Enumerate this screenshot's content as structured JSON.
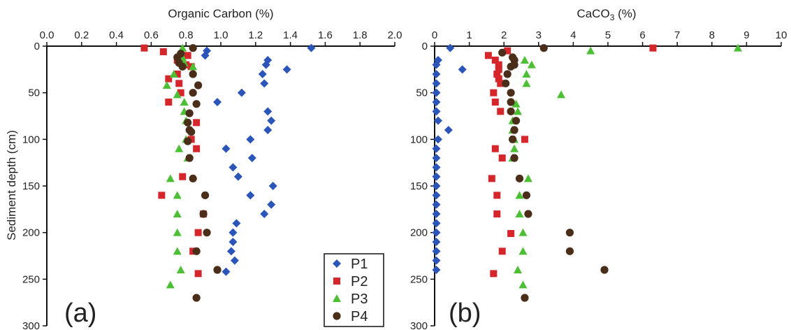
{
  "colors": {
    "P1": "#2b55b8",
    "P2": "#d4262b",
    "P3": "#4cbf34",
    "P4": "#4a2e1a",
    "axis": "#111111"
  },
  "legend": {
    "items": [
      "P1",
      "P2",
      "P3",
      "P4"
    ],
    "placement": "bottom-center"
  },
  "shared_ylabel": "Sediment depth (cm)",
  "chart_data": [
    {
      "type": "scatter",
      "panel_label": "(a)",
      "title": "Organic Carbon (%)",
      "xlim": [
        0.0,
        2.0
      ],
      "ylim": [
        0,
        300
      ],
      "y_inverted": true,
      "x_axis_position": "top",
      "xticks": [
        "0.0",
        "0.2",
        "0.4",
        "0.6",
        "0.8",
        "1.0",
        "1.2",
        "1.4",
        "1.6",
        "1.8",
        "2.0"
      ],
      "yticks": [
        "0",
        "50",
        "100",
        "150",
        "200",
        "250",
        "300"
      ],
      "series": [
        {
          "name": "P1",
          "marker": "diamond",
          "points": [
            [
              1.52,
              2
            ],
            [
              0.92,
              5
            ],
            [
              0.91,
              10
            ],
            [
              1.27,
              15
            ],
            [
              1.26,
              20
            ],
            [
              1.38,
              25
            ],
            [
              1.24,
              30
            ],
            [
              1.25,
              40
            ],
            [
              1.12,
              50
            ],
            [
              0.98,
              60
            ],
            [
              1.27,
              70
            ],
            [
              1.29,
              80
            ],
            [
              1.27,
              90
            ],
            [
              1.17,
              100
            ],
            [
              1.03,
              110
            ],
            [
              1.18,
              120
            ],
            [
              1.07,
              130
            ],
            [
              1.1,
              140
            ],
            [
              1.3,
              150
            ],
            [
              1.17,
              160
            ],
            [
              1.29,
              170
            ],
            [
              1.25,
              180
            ],
            [
              1.09,
              190
            ],
            [
              1.07,
              200
            ],
            [
              1.07,
              210
            ],
            [
              1.06,
              220
            ],
            [
              1.08,
              230
            ],
            [
              1.03,
              242
            ]
          ]
        },
        {
          "name": "P2",
          "marker": "square",
          "points": [
            [
              0.56,
              2
            ],
            [
              0.67,
              6
            ],
            [
              0.81,
              10
            ],
            [
              0.75,
              15
            ],
            [
              0.8,
              20
            ],
            [
              0.83,
              22
            ],
            [
              0.75,
              30
            ],
            [
              0.7,
              35
            ],
            [
              0.76,
              40
            ],
            [
              0.77,
              50
            ],
            [
              0.7,
              60
            ],
            [
              0.86,
              82
            ],
            [
              0.83,
              100
            ],
            [
              0.86,
              110
            ],
            [
              0.78,
              140
            ],
            [
              0.66,
              160
            ],
            [
              0.9,
              180
            ],
            [
              0.87,
              200
            ],
            [
              0.84,
              220
            ],
            [
              0.87,
              244
            ]
          ]
        },
        {
          "name": "P3",
          "marker": "triangle",
          "points": [
            [
              0.78,
              2
            ],
            [
              0.77,
              6
            ],
            [
              0.78,
              12
            ],
            [
              0.79,
              18
            ],
            [
              0.84,
              22
            ],
            [
              0.73,
              30
            ],
            [
              0.69,
              42
            ],
            [
              0.75,
              52
            ],
            [
              0.79,
              60
            ],
            [
              0.79,
              70
            ],
            [
              0.8,
              80
            ],
            [
              0.8,
              100
            ],
            [
              0.76,
              110
            ],
            [
              0.81,
              120
            ],
            [
              0.71,
              142
            ],
            [
              0.75,
              160
            ],
            [
              0.75,
              180
            ],
            [
              0.75,
              200
            ],
            [
              0.75,
              220
            ],
            [
              0.77,
              240
            ],
            [
              0.71,
              256
            ]
          ]
        },
        {
          "name": "P4",
          "marker": "circle",
          "points": [
            [
              0.84,
              2
            ],
            [
              0.77,
              8
            ],
            [
              0.75,
              12
            ],
            [
              0.76,
              18
            ],
            [
              0.78,
              22
            ],
            [
              0.84,
              30
            ],
            [
              0.87,
              42
            ],
            [
              0.84,
              50
            ],
            [
              0.86,
              62
            ],
            [
              0.82,
              72
            ],
            [
              0.81,
              82
            ],
            [
              0.82,
              90
            ],
            [
              0.83,
              92
            ],
            [
              0.81,
              102
            ],
            [
              0.82,
              120
            ],
            [
              0.84,
              142
            ],
            [
              0.91,
              160
            ],
            [
              0.9,
              180
            ],
            [
              0.92,
              200
            ],
            [
              0.86,
              220
            ],
            [
              0.98,
              240
            ],
            [
              0.86,
              270
            ]
          ]
        }
      ]
    },
    {
      "type": "scatter",
      "panel_label": "(b)",
      "title_main": "CaCO",
      "title_sub": "3",
      "title_tail": " (%)",
      "xlim": [
        0,
        10
      ],
      "ylim": [
        0,
        300
      ],
      "y_inverted": true,
      "x_axis_position": "top",
      "xticks": [
        "0",
        "1",
        "2",
        "3",
        "4",
        "5",
        "6",
        "7",
        "8",
        "9",
        "10"
      ],
      "yticks": [
        "0",
        "50",
        "100",
        "150",
        "200",
        "250",
        "300"
      ],
      "series": [
        {
          "name": "P1",
          "marker": "diamond",
          "points": [
            [
              0.45,
              2
            ],
            [
              0.1,
              15
            ],
            [
              0.05,
              20
            ],
            [
              0.8,
              25
            ],
            [
              0.05,
              30
            ],
            [
              0.05,
              40
            ],
            [
              0.05,
              50
            ],
            [
              0.05,
              60
            ],
            [
              0.05,
              70
            ],
            [
              0.1,
              80
            ],
            [
              0.4,
              90
            ],
            [
              0.1,
              100
            ],
            [
              0.05,
              110
            ],
            [
              0.05,
              120
            ],
            [
              0.05,
              130
            ],
            [
              0.05,
              140
            ],
            [
              0.05,
              150
            ],
            [
              0.05,
              160
            ],
            [
              0.05,
              170
            ],
            [
              0.05,
              180
            ],
            [
              0.05,
              190
            ],
            [
              0.05,
              200
            ],
            [
              0.05,
              210
            ],
            [
              0.05,
              220
            ],
            [
              0.05,
              230
            ],
            [
              0.05,
              240
            ]
          ]
        },
        {
          "name": "P2",
          "marker": "square",
          "points": [
            [
              6.3,
              2
            ],
            [
              2.1,
              5
            ],
            [
              1.55,
              10
            ],
            [
              1.75,
              15
            ],
            [
              1.85,
              20
            ],
            [
              1.85,
              25
            ],
            [
              1.8,
              30
            ],
            [
              1.85,
              35
            ],
            [
              1.9,
              40
            ],
            [
              1.7,
              50
            ],
            [
              1.75,
              60
            ],
            [
              1.9,
              70
            ],
            [
              2.6,
              100
            ],
            [
              1.75,
              110
            ],
            [
              1.95,
              120
            ],
            [
              1.65,
              142
            ],
            [
              1.8,
              160
            ],
            [
              1.8,
              180
            ],
            [
              2.2,
              201
            ],
            [
              1.95,
              220
            ],
            [
              1.7,
              244
            ]
          ]
        },
        {
          "name": "P3",
          "marker": "triangle",
          "points": [
            [
              8.75,
              2
            ],
            [
              4.5,
              5
            ],
            [
              2.6,
              15
            ],
            [
              2.8,
              20
            ],
            [
              2.65,
              30
            ],
            [
              2.65,
              40
            ],
            [
              3.65,
              52
            ],
            [
              2.35,
              62
            ],
            [
              2.4,
              70
            ],
            [
              2.25,
              80
            ],
            [
              2.25,
              90
            ],
            [
              2.3,
              100
            ],
            [
              2.3,
              110
            ],
            [
              2.25,
              120
            ],
            [
              2.7,
              142
            ],
            [
              2.45,
              160
            ],
            [
              2.45,
              180
            ],
            [
              2.55,
              200
            ],
            [
              2.55,
              220
            ],
            [
              2.4,
              240
            ],
            [
              2.55,
              256
            ]
          ]
        },
        {
          "name": "P4",
          "marker": "circle",
          "points": [
            [
              3.15,
              2
            ],
            [
              1.95,
              7
            ],
            [
              2.25,
              12
            ],
            [
              2.3,
              15
            ],
            [
              2.3,
              20
            ],
            [
              2.2,
              22
            ],
            [
              2.1,
              30
            ],
            [
              2.05,
              40
            ],
            [
              2.2,
              50
            ],
            [
              2.2,
              60
            ],
            [
              2.2,
              70
            ],
            [
              2.35,
              80
            ],
            [
              2.3,
              90
            ],
            [
              2.25,
              100
            ],
            [
              2.3,
              120
            ],
            [
              2.45,
              142
            ],
            [
              2.65,
              160
            ],
            [
              2.7,
              180
            ],
            [
              3.9,
              200
            ],
            [
              3.9,
              220
            ],
            [
              4.9,
              240
            ],
            [
              2.6,
              270
            ]
          ]
        }
      ]
    }
  ]
}
